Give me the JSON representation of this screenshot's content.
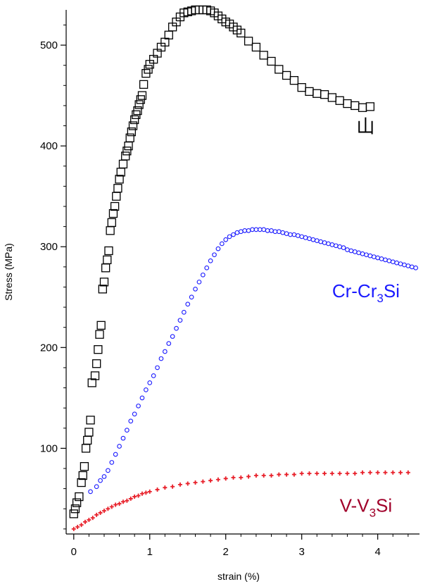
{
  "chart_data": {
    "type": "scatter",
    "title": "",
    "xlabel": "strain (%)",
    "ylabel": "Stress (MPa)",
    "xlim": [
      -0.1,
      4.55
    ],
    "ylim": [
      15,
      535
    ],
    "x_ticks": [
      0,
      1,
      2,
      3,
      4
    ],
    "y_ticks": [
      100,
      200,
      300,
      400,
      500
    ],
    "grid": false,
    "legend": "none",
    "series": [
      {
        "name": "山",
        "marker": "square",
        "color": "#000000",
        "x": [
          0.0,
          0.02,
          0.04,
          0.07,
          0.1,
          0.12,
          0.14,
          0.16,
          0.18,
          0.2,
          0.22,
          0.24,
          0.28,
          0.3,
          0.32,
          0.34,
          0.36,
          0.38,
          0.4,
          0.42,
          0.44,
          0.46,
          0.48,
          0.5,
          0.52,
          0.54,
          0.56,
          0.58,
          0.6,
          0.62,
          0.65,
          0.68,
          0.7,
          0.72,
          0.74,
          0.76,
          0.78,
          0.8,
          0.82,
          0.84,
          0.86,
          0.88,
          0.9,
          0.92,
          0.95,
          0.98,
          1.0,
          1.05,
          1.1,
          1.15,
          1.2,
          1.25,
          1.3,
          1.35,
          1.4,
          1.45,
          1.5,
          1.55,
          1.6,
          1.65,
          1.7,
          1.75,
          1.8,
          1.85,
          1.9,
          1.95,
          2.0,
          2.05,
          2.1,
          2.15,
          2.2,
          2.3,
          2.4,
          2.5,
          2.6,
          2.7,
          2.8,
          2.9,
          3.0,
          3.1,
          3.2,
          3.3,
          3.4,
          3.5,
          3.6,
          3.7,
          3.8,
          3.9
        ],
        "y": [
          35,
          40,
          46,
          52,
          66,
          73,
          82,
          100,
          108,
          116,
          128,
          165,
          172,
          184,
          198,
          213,
          222,
          258,
          265,
          279,
          287,
          296,
          316,
          324,
          333,
          340,
          350,
          358,
          367,
          374,
          382,
          390,
          395,
          400,
          408,
          414,
          420,
          426,
          431,
          435,
          441,
          446,
          450,
          461,
          472,
          476,
          481,
          486,
          492,
          498,
          503,
          510,
          518,
          523,
          528,
          532,
          533,
          534,
          535,
          535,
          535,
          535,
          534,
          532,
          529,
          526,
          523,
          521,
          518,
          515,
          512,
          504,
          498,
          490,
          484,
          476,
          470,
          465,
          458,
          454,
          452,
          451,
          448,
          445,
          442,
          440,
          438,
          439
        ]
      },
      {
        "name": "Cr-Cr3Si",
        "marker": "circle",
        "color": "#1a1aff",
        "x": [
          0.22,
          0.3,
          0.35,
          0.4,
          0.45,
          0.5,
          0.55,
          0.6,
          0.65,
          0.7,
          0.75,
          0.8,
          0.85,
          0.9,
          0.95,
          1.0,
          1.05,
          1.1,
          1.15,
          1.2,
          1.25,
          1.3,
          1.35,
          1.4,
          1.45,
          1.5,
          1.55,
          1.6,
          1.65,
          1.7,
          1.75,
          1.8,
          1.85,
          1.9,
          1.95,
          2.0,
          2.05,
          2.1,
          2.15,
          2.2,
          2.25,
          2.3,
          2.35,
          2.4,
          2.45,
          2.5,
          2.55,
          2.6,
          2.65,
          2.7,
          2.75,
          2.8,
          2.85,
          2.9,
          2.95,
          3.0,
          3.05,
          3.1,
          3.15,
          3.2,
          3.25,
          3.3,
          3.35,
          3.4,
          3.45,
          3.5,
          3.55,
          3.6,
          3.65,
          3.7,
          3.75,
          3.8,
          3.85,
          3.9,
          3.95,
          4.0,
          4.05,
          4.1,
          4.15,
          4.2,
          4.25,
          4.3,
          4.35,
          4.4,
          4.45,
          4.5
        ],
        "y": [
          57,
          62,
          68,
          72,
          78,
          86,
          94,
          102,
          110,
          118,
          127,
          134,
          142,
          150,
          158,
          165,
          172,
          180,
          189,
          196,
          204,
          211,
          219,
          227,
          235,
          243,
          250,
          258,
          265,
          272,
          279,
          286,
          292,
          298,
          303,
          307,
          310,
          312,
          314,
          315,
          316,
          316,
          317,
          317,
          317,
          317,
          316,
          316,
          315,
          315,
          314,
          313,
          312,
          312,
          311,
          310,
          309,
          308,
          307,
          306,
          305,
          304,
          303,
          302,
          301,
          300,
          299,
          297,
          296,
          295,
          294,
          293,
          292,
          291,
          290,
          289,
          288,
          287,
          286,
          285,
          284,
          283,
          282,
          281,
          280,
          279
        ]
      },
      {
        "name": "V-V3Si",
        "marker": "cross",
        "color": "#e8202a",
        "x": [
          0.0,
          0.05,
          0.1,
          0.15,
          0.2,
          0.25,
          0.3,
          0.35,
          0.4,
          0.45,
          0.5,
          0.55,
          0.6,
          0.65,
          0.7,
          0.75,
          0.8,
          0.85,
          0.9,
          0.95,
          1.0,
          1.1,
          1.2,
          1.3,
          1.4,
          1.5,
          1.6,
          1.7,
          1.8,
          1.9,
          2.0,
          2.1,
          2.2,
          2.3,
          2.4,
          2.5,
          2.6,
          2.7,
          2.8,
          2.9,
          3.0,
          3.1,
          3.2,
          3.3,
          3.4,
          3.5,
          3.6,
          3.7,
          3.8,
          3.9,
          4.0,
          4.1,
          4.2,
          4.3,
          4.4
        ],
        "y": [
          20,
          22,
          24,
          27,
          29,
          31,
          34,
          36,
          38,
          40,
          42,
          44,
          45,
          47,
          48,
          50,
          52,
          53,
          55,
          56,
          57,
          59,
          61,
          62,
          64,
          65,
          66,
          67,
          68,
          69,
          70,
          71,
          71,
          72,
          73,
          73,
          73,
          74,
          74,
          74,
          75,
          75,
          75,
          75,
          75,
          75,
          75,
          75,
          76,
          76,
          76,
          76,
          76,
          76,
          76
        ]
      }
    ],
    "annotations": [
      {
        "series": "山",
        "text": "山",
        "color": "#000000",
        "x": 3.72,
        "y": 413
      },
      {
        "series": "Cr-Cr3Si",
        "text_main": "Cr-Cr",
        "text_sub": "3",
        "text_tail": "Si",
        "color": "#1a1aff",
        "x": 3.4,
        "y": 250
      },
      {
        "series": "V-V3Si",
        "text_main": "V-V",
        "text_sub": "3",
        "text_tail": "Si",
        "color": "#a0002a",
        "x": 3.5,
        "y": 37
      }
    ]
  }
}
